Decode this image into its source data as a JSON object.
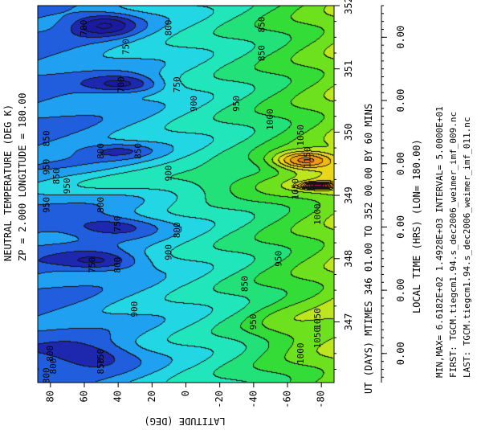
{
  "chart_data": {
    "type": "heatmap",
    "title_lines": [
      "NEUTRAL TEMPERATURE (DEG K)",
      "ZP =     2.000 LONGITUDE =   180.00"
    ],
    "xlabel": "UT (DAYS) MTIMES 346 01.00 TO 352 00.00 BY   60 MINS",
    "ylabel": "LATITUDE (DEG)",
    "top_axis_label": "LOCAL TIME (HRS) (LON= 180.00)",
    "info_lines": [
      "MIN,MAX=  6.6182E+02  1.4928E+03 INTERVAL=  5.0000E+01",
      "FIRST: TGCM.tiegcm1.94.s_dec2006_weimer_imf_009.nc",
      "LAST:  TGCM.tiegcm1.94.s_dec2006_weimer_imf_011.nc"
    ],
    "x_range_days": [
      346.04,
      352.0
    ],
    "y_range_deg": [
      -87.5,
      87.5
    ],
    "x_ticks": [
      {
        "value": 347,
        "label": "347"
      },
      {
        "value": 348,
        "label": "348"
      },
      {
        "value": 349,
        "label": "349"
      },
      {
        "value": 350,
        "label": "350"
      },
      {
        "value": 351,
        "label": "351"
      },
      {
        "value": 352,
        "label": "352"
      }
    ],
    "y_ticks": [
      {
        "value": 80,
        "label": "80"
      },
      {
        "value": 60,
        "label": "60"
      },
      {
        "value": 40,
        "label": "40"
      },
      {
        "value": 20,
        "label": "20"
      },
      {
        "value": 0,
        "label": "0"
      },
      {
        "value": -20,
        "label": "-20"
      },
      {
        "value": -40,
        "label": "-40"
      },
      {
        "value": -60,
        "label": "-60"
      },
      {
        "value": -80,
        "label": "-80"
      }
    ],
    "local_time_ticks": [
      {
        "value": 346.5,
        "label": "0.00"
      },
      {
        "value": 347.5,
        "label": "0.00"
      },
      {
        "value": 348.5,
        "label": "0.00"
      },
      {
        "value": 349.5,
        "label": "0.00"
      },
      {
        "value": 350.5,
        "label": "0.00"
      },
      {
        "value": 351.5,
        "label": "0.00"
      }
    ],
    "contour_interval": 50,
    "value_min": 661.82,
    "value_max": 1492.8,
    "contour_labels": [
      {
        "x": 351.65,
        "y": 60,
        "text": "700"
      },
      {
        "x": 351.65,
        "y": 10,
        "text": "800"
      },
      {
        "x": 351.7,
        "y": -45,
        "text": "850"
      },
      {
        "x": 351.35,
        "y": 35,
        "text": "750"
      },
      {
        "x": 351.25,
        "y": -45,
        "text": "850"
      },
      {
        "x": 350.75,
        "y": 38,
        "text": "700"
      },
      {
        "x": 350.75,
        "y": 5,
        "text": "750"
      },
      {
        "x": 350.45,
        "y": -5,
        "text": "900"
      },
      {
        "x": 350.45,
        "y": -30,
        "text": "950"
      },
      {
        "x": 350.2,
        "y": -50,
        "text": "1000"
      },
      {
        "x": 349.9,
        "y": 82,
        "text": "850"
      },
      {
        "x": 349.7,
        "y": 50,
        "text": "800"
      },
      {
        "x": 349.7,
        "y": 28,
        "text": "850"
      },
      {
        "x": 349.95,
        "y": -68,
        "text": "1050"
      },
      {
        "x": 349.6,
        "y": -72,
        "text": "1150"
      },
      {
        "x": 349.45,
        "y": 82,
        "text": "950"
      },
      {
        "x": 349.3,
        "y": 76,
        "text": "850"
      },
      {
        "x": 349.35,
        "y": 10,
        "text": "900"
      },
      {
        "x": 349.15,
        "y": 70,
        "text": "950"
      },
      {
        "x": 349.1,
        "y": -65,
        "text": "1050"
      },
      {
        "x": 348.85,
        "y": 82,
        "text": "950"
      },
      {
        "x": 348.85,
        "y": 50,
        "text": "800"
      },
      {
        "x": 348.7,
        "y": -78,
        "text": "1000"
      },
      {
        "x": 348.55,
        "y": 40,
        "text": "750"
      },
      {
        "x": 348.45,
        "y": 5,
        "text": "800"
      },
      {
        "x": 348.1,
        "y": 10,
        "text": "900"
      },
      {
        "x": 348.0,
        "y": -55,
        "text": "950"
      },
      {
        "x": 347.9,
        "y": 55,
        "text": "750"
      },
      {
        "x": 347.9,
        "y": 40,
        "text": "800"
      },
      {
        "x": 347.6,
        "y": -35,
        "text": "850"
      },
      {
        "x": 347.2,
        "y": 30,
        "text": "900"
      },
      {
        "x": 347.0,
        "y": -40,
        "text": "950"
      },
      {
        "x": 346.75,
        "y": -78,
        "text": "1050"
      },
      {
        "x": 347.05,
        "y": -78,
        "text": "1050"
      },
      {
        "x": 346.5,
        "y": 80,
        "text": "800"
      },
      {
        "x": 346.45,
        "y": 50,
        "text": "750"
      },
      {
        "x": 346.5,
        "y": -68,
        "text": "1000"
      },
      {
        "x": 346.3,
        "y": 78,
        "text": "800"
      },
      {
        "x": 346.3,
        "y": 50,
        "text": "850"
      },
      {
        "x": 346.15,
        "y": 82,
        "text": "800"
      }
    ],
    "color_scale": [
      {
        "value": 661.82,
        "color": "#1a1aa0"
      },
      {
        "value": 700,
        "color": "#2244cc"
      },
      {
        "value": 750,
        "color": "#1e78f0"
      },
      {
        "value": 800,
        "color": "#22c8f0"
      },
      {
        "value": 850,
        "color": "#22e6d6"
      },
      {
        "value": 900,
        "color": "#22e6a0"
      },
      {
        "value": 950,
        "color": "#22dc50"
      },
      {
        "value": 1000,
        "color": "#46dc1e"
      },
      {
        "value": 1050,
        "color": "#96e61e"
      },
      {
        "value": 1100,
        "color": "#e6e61e"
      },
      {
        "value": 1150,
        "color": "#f0c814"
      },
      {
        "value": 1250,
        "color": "#f08c14"
      },
      {
        "value": 1350,
        "color": "#e63c1e"
      },
      {
        "value": 1492.8,
        "color": "#c80064"
      }
    ]
  }
}
